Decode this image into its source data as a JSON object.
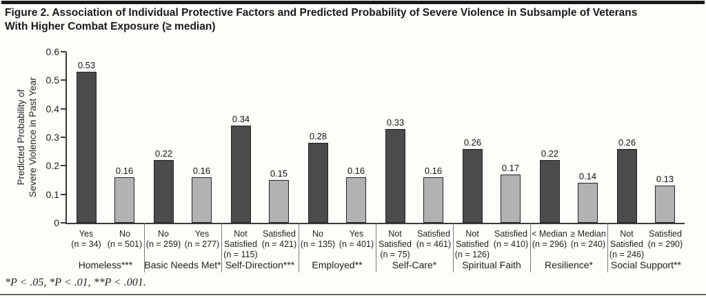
{
  "title": {
    "text": "Figure 2. Association of Individual Protective Factors and Predicted Probability of Severe Violence in Subsample of Veterans\nWith Higher Combat Exposure (≥ median)"
  },
  "footnote": "*P < .05, *P < .01, **P < .001.",
  "chart_data": {
    "type": "bar",
    "title": "Figure 2. Association of Individual Protective Factors and Predicted Probability of Severe Violence in Subsample of Veterans With Higher Combat Exposure (≥ median)",
    "ylabel": "Predicted Probability of\nSevere Violence in Past Year",
    "xlabel": "",
    "ylim": [
      0,
      0.6
    ],
    "yticks": [
      0,
      0.1,
      0.2,
      0.3,
      0.4,
      0.5,
      0.6
    ],
    "grid": false,
    "legend": "none",
    "colors": {
      "dark": "#4b4b4b",
      "light": "#b2b2b2"
    },
    "groups": [
      {
        "label": "Homeless***",
        "bars": [
          {
            "tick": "Yes\n(n = 34)",
            "value": 0.53,
            "shade": "dark"
          },
          {
            "tick": "No\n(n = 501)",
            "value": 0.16,
            "shade": "light"
          }
        ]
      },
      {
        "label": "Basic Needs Met*",
        "bars": [
          {
            "tick": "No\n(n = 259)",
            "value": 0.22,
            "shade": "dark"
          },
          {
            "tick": "Yes\n(n = 277)",
            "value": 0.16,
            "shade": "light"
          }
        ]
      },
      {
        "label": "Self-Direction***",
        "bars": [
          {
            "tick": "Not\nSatisfied\n(n = 115)",
            "value": 0.34,
            "shade": "dark"
          },
          {
            "tick": "Satisfied\n(n = 421)",
            "value": 0.15,
            "shade": "light"
          }
        ]
      },
      {
        "label": "Employed**",
        "bars": [
          {
            "tick": "No\n(n = 135)",
            "value": 0.28,
            "shade": "dark"
          },
          {
            "tick": "Yes\n(n = 401)",
            "value": 0.16,
            "shade": "light"
          }
        ]
      },
      {
        "label": "Self-Care*",
        "bars": [
          {
            "tick": "Not\nSatisfied\n(n = 75)",
            "value": 0.33,
            "shade": "dark"
          },
          {
            "tick": "Satisfied\n(n = 461)",
            "value": 0.16,
            "shade": "light"
          }
        ]
      },
      {
        "label": "Spiritual Faith",
        "bars": [
          {
            "tick": "Not\nSatisfied\n(n = 126)",
            "value": 0.26,
            "shade": "dark"
          },
          {
            "tick": "Satisfied\n(n = 410)",
            "value": 0.17,
            "shade": "light"
          }
        ]
      },
      {
        "label": "Resilience*",
        "bars": [
          {
            "tick": "< Median\n(n = 296)",
            "value": 0.22,
            "shade": "dark"
          },
          {
            "tick": "≥ Median\n(n = 240)",
            "value": 0.14,
            "shade": "light"
          }
        ]
      },
      {
        "label": "Social Support**",
        "bars": [
          {
            "tick": "Not\nSatisfied\n(n = 246)",
            "value": 0.26,
            "shade": "dark"
          },
          {
            "tick": "Satisfied\n(n = 290)",
            "value": 0.13,
            "shade": "light"
          }
        ]
      }
    ]
  }
}
